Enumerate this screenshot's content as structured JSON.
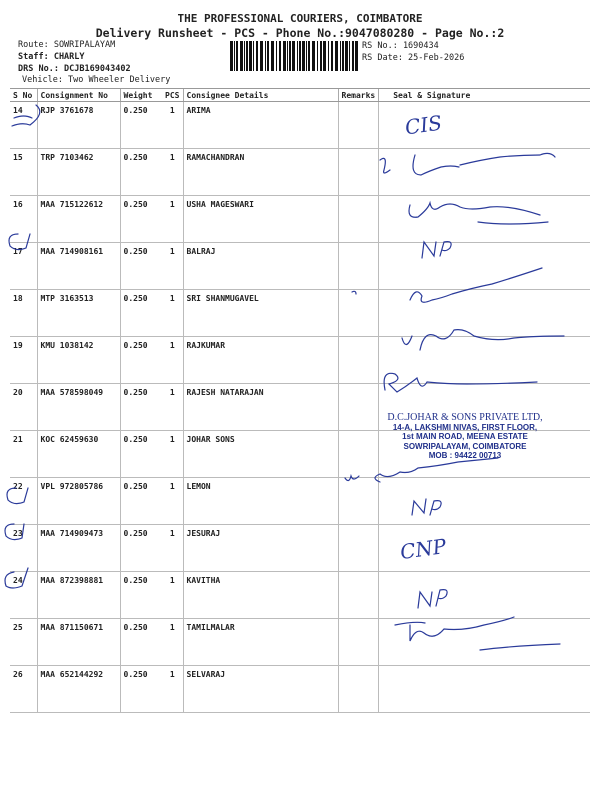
{
  "header": {
    "company": "THE PROFESSIONAL COURIERS, COIMBATORE",
    "subtitle": "Delivery Runsheet - PCS - Phone No.:9047080280 - Page No.:2",
    "route": "Route: SOWRIPALAYAM",
    "staff": "Staff: CHARLY",
    "drs": "DRS No.: DCJB169043402",
    "vehicle": "Vehicle: Two Wheeler Delivery",
    "rs_no": "RS No.: 1690434",
    "rs_date": "RS Date: 25-Feb-2026"
  },
  "table": {
    "columns": [
      "S No",
      "Consignment No",
      "Weight",
      "PCS",
      "Consignee Details",
      "Remarks",
      "Seal & Signature"
    ],
    "rows": [
      {
        "sno": "14",
        "consignment": "RJP 3761678",
        "weight": "0.250",
        "pcs": "1",
        "consignee": "ARIMA"
      },
      {
        "sno": "15",
        "consignment": "TRP 7103462",
        "weight": "0.250",
        "pcs": "1",
        "consignee": "RAMACHANDRAN"
      },
      {
        "sno": "16",
        "consignment": "MAA 715122612",
        "weight": "0.250",
        "pcs": "1",
        "consignee": "USHA MAGESWARI"
      },
      {
        "sno": "17",
        "consignment": "MAA 714908161",
        "weight": "0.250",
        "pcs": "1",
        "consignee": "BALRAJ"
      },
      {
        "sno": "18",
        "consignment": "MTP 3163513",
        "weight": "0.250",
        "pcs": "1",
        "consignee": "SRI SHANMUGAVEL"
      },
      {
        "sno": "19",
        "consignment": "KMU 1038142",
        "weight": "0.250",
        "pcs": "1",
        "consignee": "RAJKUMAR"
      },
      {
        "sno": "20",
        "consignment": "MAA 578598049",
        "weight": "0.250",
        "pcs": "1",
        "consignee": "RAJESH NATARAJAN"
      },
      {
        "sno": "21",
        "consignment": "KOC 62459630",
        "weight": "0.250",
        "pcs": "1",
        "consignee": "JOHAR  SONS"
      },
      {
        "sno": "22",
        "consignment": "VPL 972805786",
        "weight": "0.250",
        "pcs": "1",
        "consignee": "LEMON"
      },
      {
        "sno": "23",
        "consignment": "MAA 714909473",
        "weight": "0.250",
        "pcs": "1",
        "consignee": "JESURAJ"
      },
      {
        "sno": "24",
        "consignment": "MAA 872398881",
        "weight": "0.250",
        "pcs": "1",
        "consignee": "KAVITHA"
      },
      {
        "sno": "25",
        "consignment": "MAA 871150671",
        "weight": "0.250",
        "pcs": "1",
        "consignee": "TAMILMALAR"
      },
      {
        "sno": "26",
        "consignment": "MAA 652144292",
        "weight": "0.250",
        "pcs": "1",
        "consignee": "SELVARAJ"
      }
    ]
  },
  "stamp": {
    "line1": "D.C.JOHAR & SONS PRIVATE LTD,",
    "line2": "14-A, LAKSHMI NIVAS, FIRST FLOOR,",
    "line3": "1st MAIN ROAD, MEENA ESTATE",
    "line4": "SOWRIPALAYAM, COIMBATORE",
    "line5": "MOB : 94422 00713"
  },
  "handwriting": {
    "row14": "CIS",
    "row17": "NP",
    "row23": "NP",
    "row24": "CNP",
    "row25": "NP"
  },
  "colors": {
    "ink": "#2a3a9a",
    "stamp": "#1f2f8a"
  }
}
